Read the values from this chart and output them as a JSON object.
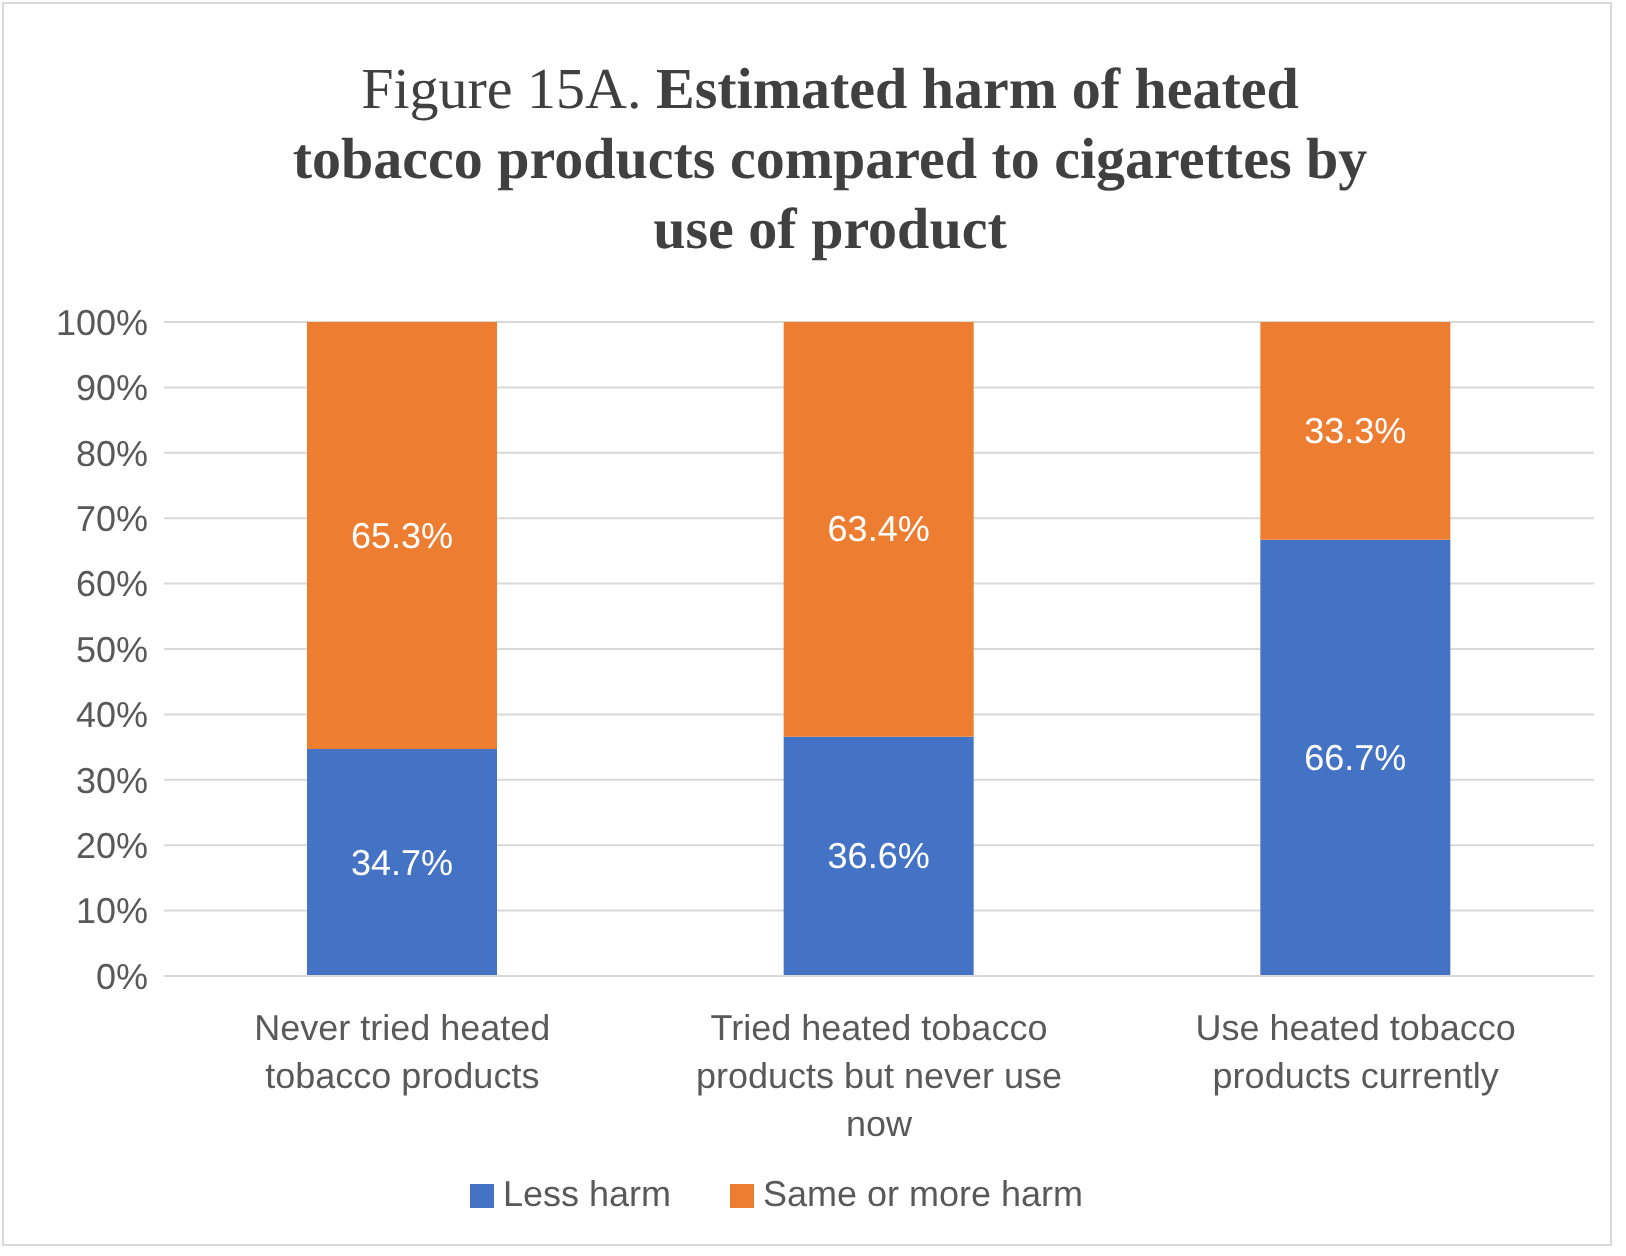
{
  "chart_data": {
    "type": "bar",
    "title": "Figure 15A.  Estimated harm of heated tobacco products compared to cigarettes by use of product",
    "categories": [
      "Never tried heated tobacco products",
      "Tried heated tobacco products but never use now",
      "Use heated tobacco products currently"
    ],
    "stacked": true,
    "series": [
      {
        "name": "Less harm",
        "color": "#4472c4",
        "values": [
          34.7,
          36.6,
          66.7
        ],
        "value_labels": [
          "34.7%",
          "36.6%",
          "66.7%"
        ]
      },
      {
        "name": "Same or more harm",
        "color": "#ed7d31",
        "values": [
          65.3,
          63.4,
          33.3
        ],
        "value_labels": [
          "65.3%",
          "63.4%",
          "33.3%"
        ]
      }
    ],
    "ylim": [
      0,
      100
    ],
    "yticks": [
      {
        "value": 0,
        "label": "0%"
      },
      {
        "value": 10,
        "label": "10%"
      },
      {
        "value": 20,
        "label": "20%"
      },
      {
        "value": 30,
        "label": "30%"
      },
      {
        "value": 40,
        "label": "40%"
      },
      {
        "value": 50,
        "label": "50%"
      },
      {
        "value": 60,
        "label": "60%"
      },
      {
        "value": 70,
        "label": "70%"
      },
      {
        "value": 80,
        "label": "80%"
      },
      {
        "value": 90,
        "label": "90%"
      },
      {
        "value": 100,
        "label": "100%"
      }
    ],
    "grid": "y",
    "legend": "bottom"
  }
}
